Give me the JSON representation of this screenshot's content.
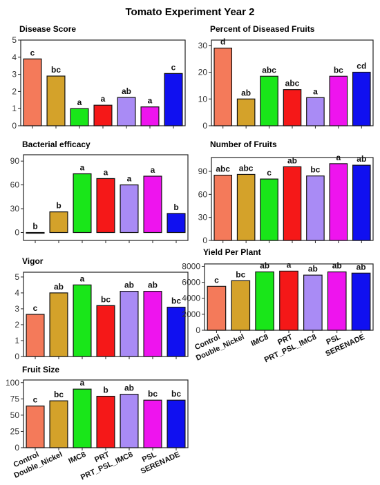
{
  "figure_title": "Tomato Experiment Year 2",
  "treatments": [
    "Control",
    "Double_Nickel",
    "IMC8",
    "PRT",
    "PRT_PSL_IMC8",
    "PSL",
    "SERENADE"
  ],
  "colors": [
    "#f47a5a",
    "#d4a22a",
    "#19e619",
    "#f51818",
    "#a98bf5",
    "#ee14ee",
    "#1010f0"
  ],
  "chart_data": [
    {
      "type": "bar",
      "title": "Disease Score",
      "categories": [
        "Control",
        "Double_Nickel",
        "IMC8",
        "PRT",
        "PRT_PSL_IMC8",
        "PSL",
        "SERENADE"
      ],
      "values": [
        3.9,
        2.9,
        1.0,
        1.2,
        1.65,
        1.1,
        3.05
      ],
      "letters": [
        "c",
        "bc",
        "a",
        "a",
        "ab",
        "a",
        "c"
      ],
      "ylim": [
        0,
        5
      ],
      "yticks": [
        0,
        1,
        2,
        3,
        4,
        5
      ],
      "grid": false
    },
    {
      "type": "bar",
      "title": "Percent of Diseased Fruits",
      "categories": [
        "Control",
        "Double_Nickel",
        "IMC8",
        "PRT",
        "PRT_PSL_IMC8",
        "PSL",
        "SERENADE"
      ],
      "values": [
        29,
        10,
        18.5,
        13.5,
        10.5,
        18.5,
        20
      ],
      "letters": [
        "d",
        "ab",
        "abc",
        "abc",
        "a",
        "bc",
        "cd"
      ],
      "ylim": [
        0,
        32
      ],
      "yticks": [
        0,
        10,
        20,
        30
      ],
      "grid": false
    },
    {
      "type": "bar",
      "title": "Bacterial efficacy",
      "categories": [
        "Control",
        "Double_Nickel",
        "IMC8",
        "PRT",
        "PRT_PSL_IMC8",
        "PSL",
        "SERENADE"
      ],
      "values": [
        -1,
        26,
        74,
        68,
        60,
        71,
        24
      ],
      "letters": [
        "b",
        "b",
        "a",
        "a",
        "a",
        "a",
        "b"
      ],
      "ylim": [
        -10,
        98
      ],
      "yticks": [
        0,
        30,
        60,
        90
      ],
      "grid": false
    },
    {
      "type": "bar",
      "title": "Number of Fruits",
      "categories": [
        "Control",
        "Double_Nickel",
        "IMC8",
        "PRT",
        "PRT_PSL_IMC8",
        "PSL",
        "SERENADE"
      ],
      "values": [
        85,
        86,
        80,
        96,
        84,
        100,
        98
      ],
      "letters": [
        "abc",
        "abc",
        "c",
        "ab",
        "bc",
        "a",
        "ab"
      ],
      "ylim": [
        0,
        108
      ],
      "yticks": [
        0,
        30,
        60,
        90
      ],
      "grid": false
    },
    {
      "type": "bar",
      "title": "Vigor",
      "categories": [
        "Control",
        "Double_Nickel",
        "IMC8",
        "PRT",
        "PRT_PSL_IMC8",
        "PSL",
        "SERENADE"
      ],
      "values": [
        2.65,
        4.0,
        4.5,
        3.2,
        4.1,
        4.1,
        3.1
      ],
      "letters": [
        "c",
        "ab",
        "a",
        "bc",
        "ab",
        "ab",
        "bc"
      ],
      "ylim": [
        0,
        5.3
      ],
      "yticks": [
        0,
        1,
        2,
        3,
        4,
        5
      ],
      "grid": false
    },
    {
      "type": "bar",
      "title": "Yield Per Plant",
      "categories": [
        "Control",
        "Double_Nickel",
        "IMC8",
        "PRT",
        "PRT_PSL_IMC8",
        "PSL",
        "SERENADE"
      ],
      "values": [
        5500,
        6200,
        7300,
        7400,
        6900,
        7300,
        7150
      ],
      "letters": [
        "c",
        "bc",
        "ab",
        "a",
        "ab",
        "ab",
        "ab"
      ],
      "ylim": [
        0,
        8300
      ],
      "yticks": [
        0,
        2000,
        4000,
        6000,
        8000
      ],
      "grid": false
    },
    {
      "type": "bar",
      "title": "Fruit Size",
      "categories": [
        "Control",
        "Double_Nickel",
        "IMC8",
        "PRT",
        "PRT_PSL_IMC8",
        "PSL",
        "SERENADE"
      ],
      "values": [
        64,
        72,
        90,
        79,
        82,
        73,
        73
      ],
      "letters": [
        "c",
        "bc",
        "a",
        "b",
        "ab",
        "bc",
        "bc"
      ],
      "ylim": [
        0,
        104
      ],
      "yticks": [
        0,
        25,
        50,
        75,
        100
      ],
      "grid": false
    }
  ]
}
